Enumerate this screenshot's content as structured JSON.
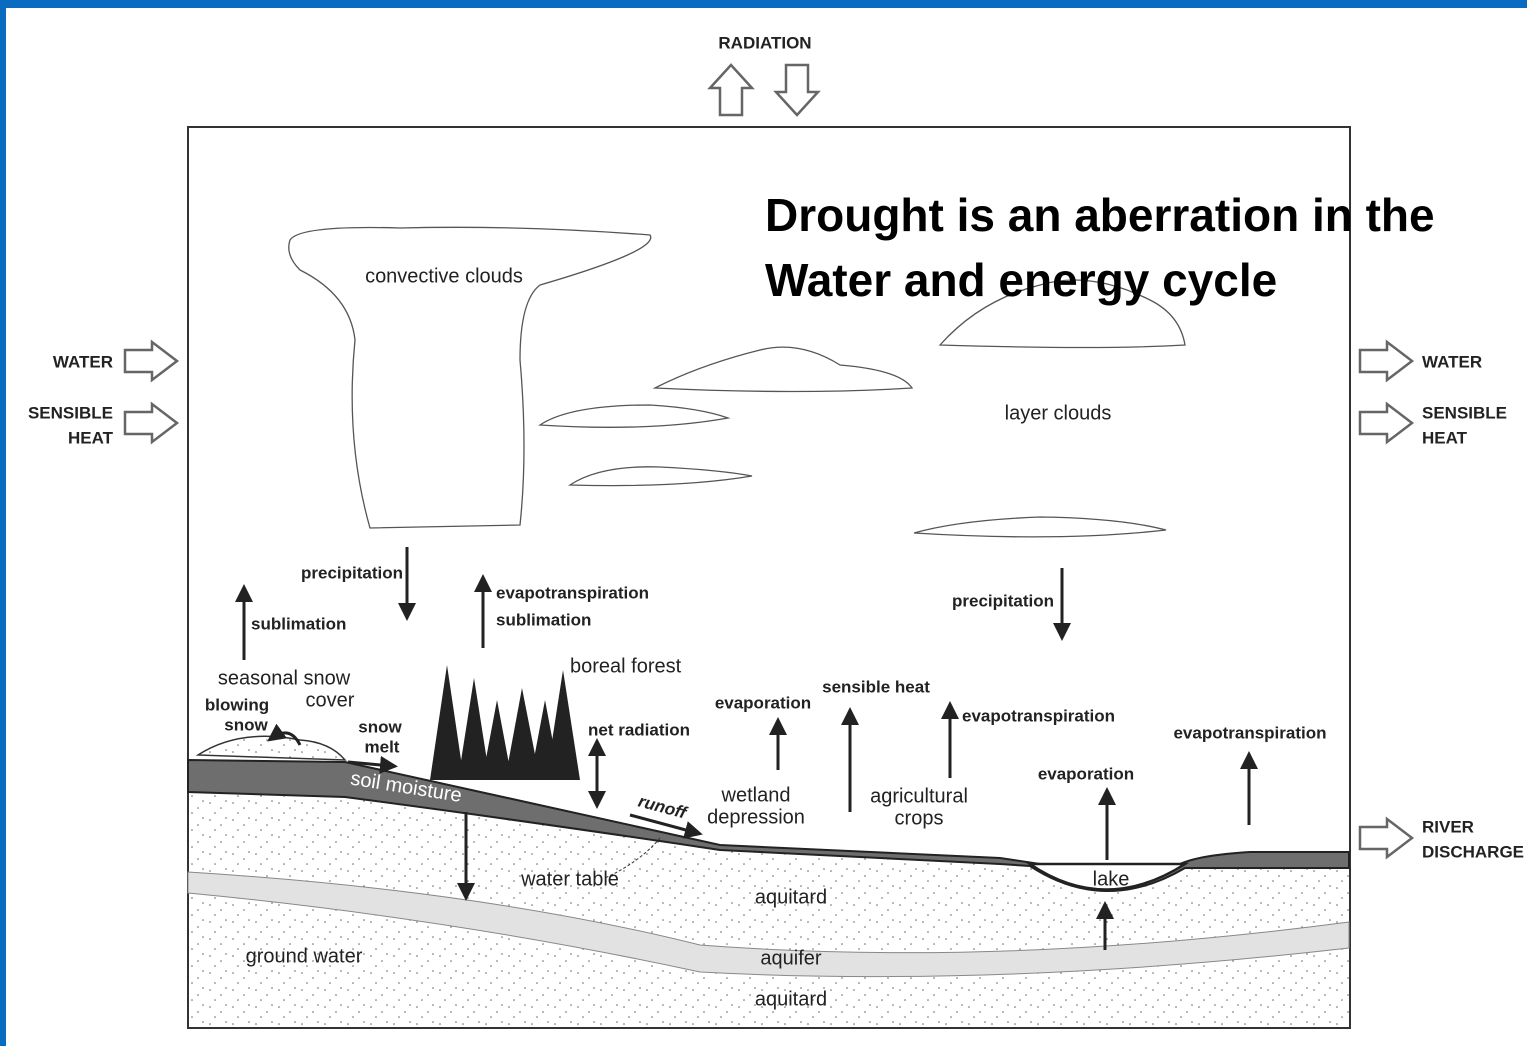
{
  "title": [
    "Drought  is an aberration in the",
    "Water and energy cycle"
  ],
  "radiation": "RADIATION",
  "flows": {
    "left": [
      "WATER",
      "SENSIBLE",
      "HEAT"
    ],
    "right": [
      "WATER",
      "SENSIBLE",
      "HEAT",
      "RIVER",
      "DISCHARGE"
    ]
  },
  "labels": [
    "convective clouds",
    "layer clouds",
    "precipitation",
    "sublimation",
    "evapotranspiration",
    "sublimation",
    "boreal forest",
    "seasonal snow",
    "cover",
    "blowing",
    "snow",
    "snow",
    "melt",
    "net radiation",
    "evaporation",
    "sensible heat",
    "evapotranspiration",
    "precipitation",
    "evapotranspiration",
    "evaporation",
    "soil moisture",
    "runoff",
    "wetland",
    "depression",
    "agricultural",
    "crops",
    "lake",
    "water table",
    "aquitard",
    "aquifer",
    "aquitard",
    "ground water"
  ]
}
